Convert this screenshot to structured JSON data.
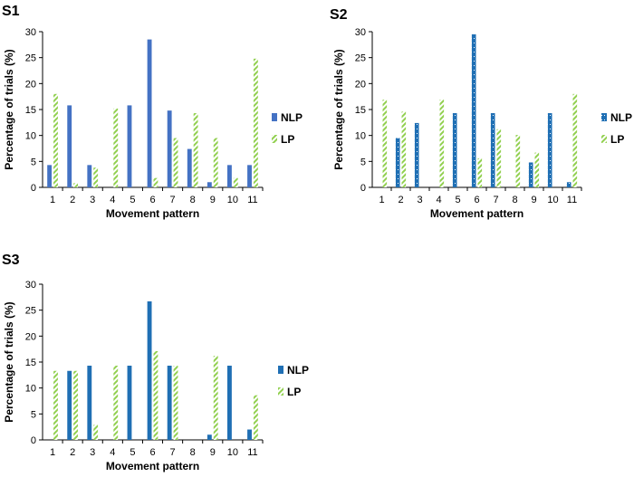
{
  "colors": {
    "nlp": "#4472c4",
    "nlp_s2": "#1f6fb4",
    "lp": "#92d050"
  },
  "chart_data": [
    {
      "panel": "S1",
      "type": "bar",
      "categories": [
        "1",
        "2",
        "3",
        "4",
        "5",
        "6",
        "7",
        "8",
        "9",
        "10",
        "11"
      ],
      "series": [
        {
          "name": "NLP",
          "values": [
            4.3,
            15.8,
            4.3,
            0,
            15.8,
            28.5,
            14.8,
            7.4,
            1.0,
            4.3,
            4.3
          ]
        },
        {
          "name": "LP",
          "values": [
            18.0,
            0.8,
            3.8,
            15.2,
            0,
            1.8,
            9.5,
            14.3,
            9.5,
            1.8,
            24.8
          ]
        }
      ],
      "xlabel": "Movement pattern",
      "ylabel": "Percentage of trials (%)",
      "ylim": [
        0,
        30
      ],
      "yticks": [
        0,
        5,
        10,
        15,
        20,
        25,
        30
      ],
      "grid": false,
      "legend": "right"
    },
    {
      "panel": "S2",
      "type": "bar",
      "categories": [
        "1",
        "2",
        "3",
        "4",
        "5",
        "6",
        "7",
        "8",
        "9",
        "10",
        "11"
      ],
      "series": [
        {
          "name": "NLP",
          "values": [
            0,
            9.5,
            12.4,
            0,
            14.3,
            29.5,
            14.3,
            0,
            4.8,
            14.3,
            1.0
          ]
        },
        {
          "name": "LP",
          "values": [
            16.9,
            14.6,
            0,
            16.9,
            0,
            5.6,
            11.2,
            10.1,
            6.7,
            0,
            18.0
          ]
        }
      ],
      "xlabel": "Movement pattern",
      "ylabel": "Percentage of trials (%)",
      "ylim": [
        0,
        30
      ],
      "yticks": [
        0,
        5,
        10,
        15,
        20,
        25,
        30
      ],
      "grid": false,
      "legend": "right"
    },
    {
      "panel": "S3",
      "type": "bar",
      "categories": [
        "1",
        "2",
        "3",
        "4",
        "5",
        "6",
        "7",
        "8",
        "9",
        "10",
        "11"
      ],
      "series": [
        {
          "name": "NLP",
          "values": [
            0,
            13.3,
            14.3,
            0,
            14.3,
            26.7,
            14.3,
            0,
            1.0,
            14.3,
            2.0
          ]
        },
        {
          "name": "LP",
          "values": [
            13.3,
            13.3,
            2.9,
            14.3,
            0,
            17.1,
            14.3,
            0,
            16.2,
            0,
            8.6
          ]
        }
      ],
      "xlabel": "Movement pattern",
      "ylabel": "Percentage of trials (%)",
      "ylim": [
        0,
        30
      ],
      "yticks": [
        0,
        5,
        10,
        15,
        20,
        25,
        30
      ],
      "grid": false,
      "legend": "right"
    }
  ]
}
